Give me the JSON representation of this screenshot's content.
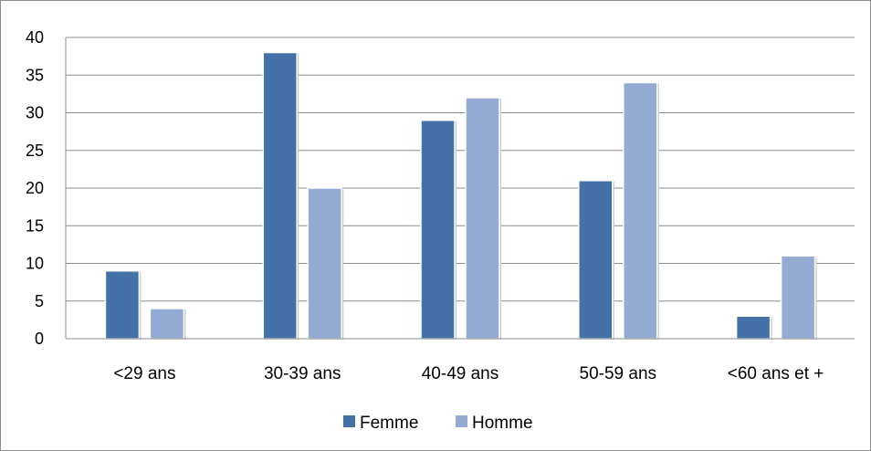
{
  "chart_data": {
    "type": "bar",
    "categories": [
      "<29 ans",
      "30-39 ans",
      "40-49 ans",
      "50-59 ans",
      "<60 ans et +"
    ],
    "series": [
      {
        "name": "Femme",
        "values": [
          9,
          38,
          29,
          21,
          3
        ],
        "color": "#4472a8"
      },
      {
        "name": "Homme",
        "values": [
          4,
          20,
          32,
          34,
          11
        ],
        "color": "#94abd4"
      }
    ],
    "ylim": [
      0,
      40
    ],
    "yticks": [
      0,
      5,
      10,
      15,
      20,
      25,
      30,
      35,
      40
    ],
    "grid": true,
    "legend": "bottom-center",
    "xlabel": "",
    "ylabel": "",
    "title": ""
  }
}
